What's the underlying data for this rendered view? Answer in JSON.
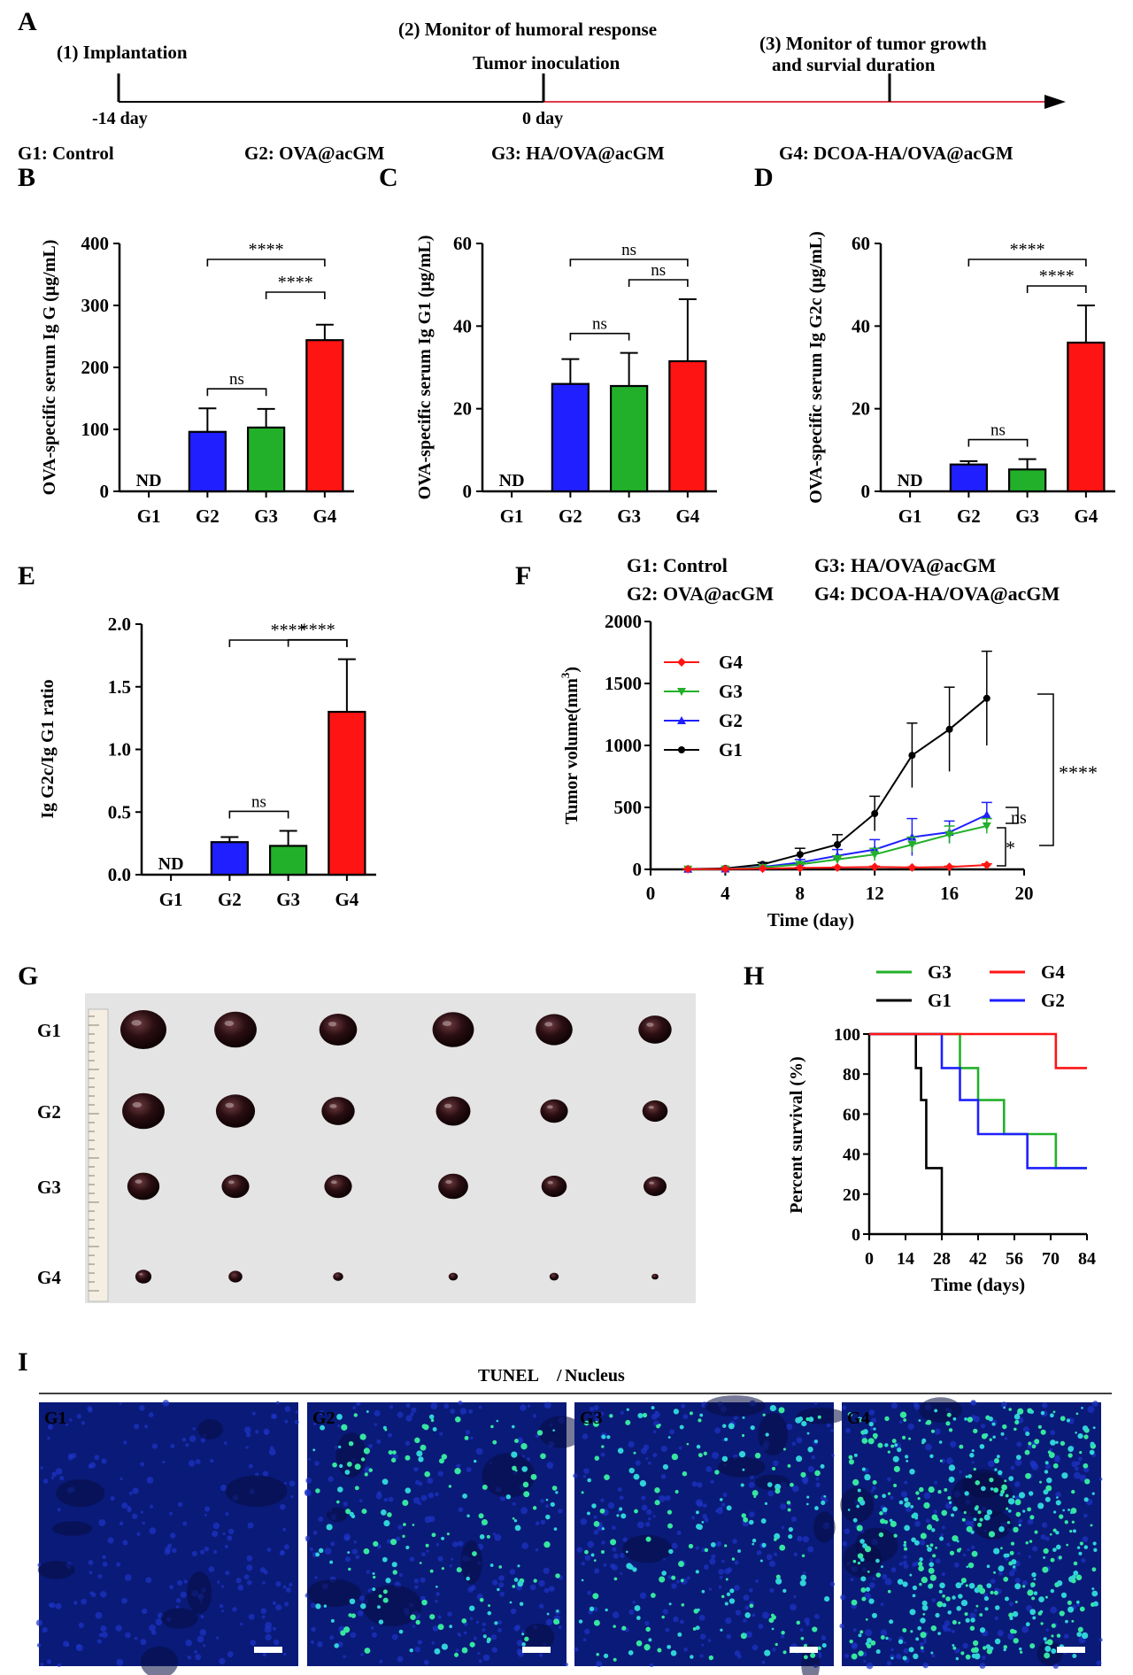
{
  "panel_letters": {
    "A": "A",
    "B": "B",
    "C": "C",
    "D": "D",
    "E": "E",
    "F": "F",
    "G": "G",
    "H": "H",
    "I": "I"
  },
  "timeline": {
    "step1": "(1) Implantation",
    "step2": "(2) Monitor of humoral response",
    "step2b": "Tumor inoculation",
    "step3a": "(3) Monitor of tumor growth",
    "step3b": "and survial duration",
    "day_neg14": "-14 day",
    "day_0": "0 day"
  },
  "groups_legend": {
    "g1": "G1: Control",
    "g2": "G2: OVA@acGM",
    "g3": "G3: HA/OVA@acGM",
    "g4": "G4: DCOA-HA/OVA@acGM"
  },
  "colors": {
    "G1": "#000000",
    "G2": "#1f1fff",
    "G3": "#22b02a",
    "G4": "#ff1414",
    "timeline_red": "#e0394a"
  },
  "chart_data": [
    {
      "id": "B",
      "type": "bar",
      "ylabel": "OVA-specific serum Ig G (μg/mL)",
      "categories": [
        "G1",
        "G2",
        "G3",
        "G4"
      ],
      "values": [
        0,
        96,
        103,
        244
      ],
      "errors": [
        0,
        38,
        30,
        25
      ],
      "ylim": [
        0,
        400
      ],
      "yticks": [
        "0",
        "100",
        "200",
        "300",
        "400"
      ],
      "nd_label": "ND",
      "sig": [
        {
          "from": "G2",
          "to": "G4",
          "label": "****"
        },
        {
          "from": "G3",
          "to": "G4",
          "label": "****"
        },
        {
          "from": "G2",
          "to": "G3",
          "label": "ns"
        }
      ]
    },
    {
      "id": "C",
      "type": "bar",
      "ylabel": "OVA-specific serum Ig G1 (μg/mL)",
      "categories": [
        "G1",
        "G2",
        "G3",
        "G4"
      ],
      "values": [
        0,
        26,
        25.5,
        31.5
      ],
      "errors": [
        0,
        6,
        8,
        15
      ],
      "ylim": [
        0,
        60
      ],
      "yticks": [
        "0",
        "20",
        "40",
        "60"
      ],
      "nd_label": "ND",
      "sig": [
        {
          "from": "G2",
          "to": "G4",
          "label": "ns"
        },
        {
          "from": "G3",
          "to": "G4",
          "label": "ns"
        },
        {
          "from": "G2",
          "to": "G3",
          "label": "ns"
        }
      ]
    },
    {
      "id": "D",
      "type": "bar",
      "ylabel": "OVA-specific serum Ig G2c (μg/mL)",
      "categories": [
        "G1",
        "G2",
        "G3",
        "G4"
      ],
      "values": [
        0,
        6.5,
        5.3,
        36
      ],
      "errors": [
        0,
        0.8,
        2.5,
        9
      ],
      "ylim": [
        0,
        60
      ],
      "yticks": [
        "0",
        "20",
        "40",
        "60"
      ],
      "nd_label": "ND",
      "sig": [
        {
          "from": "G2",
          "to": "G4",
          "label": "****"
        },
        {
          "from": "G3",
          "to": "G4",
          "label": "****"
        },
        {
          "from": "G2",
          "to": "G3",
          "label": "ns"
        }
      ]
    },
    {
      "id": "E",
      "type": "bar",
      "ylabel": "Ig G2c/Ig G1 ratio",
      "categories": [
        "G1",
        "G2",
        "G3",
        "G4"
      ],
      "values": [
        0,
        0.26,
        0.23,
        1.3
      ],
      "errors": [
        0,
        0.04,
        0.12,
        0.42
      ],
      "ylim": [
        0,
        2.0
      ],
      "yticks": [
        "0.0",
        "0.5",
        "1.0",
        "1.5",
        "2.0"
      ],
      "nd_label": "ND",
      "sig": [
        {
          "from": "G2",
          "to": "G4",
          "label": "****"
        },
        {
          "from": "G3",
          "to": "G4",
          "label": "****"
        },
        {
          "from": "G2",
          "to": "G3",
          "label": "ns"
        }
      ]
    },
    {
      "id": "F",
      "type": "line",
      "xlabel": "Time (day)",
      "ylabel_main": "Tumor volume(mm",
      "ylabel_sup": "3",
      "ylabel_end": ")",
      "xlim": [
        0,
        20
      ],
      "ylim": [
        0,
        2000
      ],
      "xticks": [
        "0",
        "4",
        "8",
        "12",
        "16",
        "20"
      ],
      "yticks": [
        "0",
        "500",
        "1000",
        "1500",
        "2000"
      ],
      "x": [
        2,
        4,
        6,
        8,
        10,
        12,
        14,
        16,
        18
      ],
      "series": [
        {
          "name": "G4",
          "values": [
            2,
            3,
            6,
            12,
            15,
            20,
            15,
            20,
            35
          ],
          "errors": [
            1,
            1,
            2,
            4,
            5,
            6,
            5,
            6,
            10
          ],
          "marker": "diamond"
        },
        {
          "name": "G3",
          "values": [
            2,
            3,
            15,
            40,
            80,
            120,
            200,
            280,
            350
          ],
          "errors": [
            1,
            2,
            6,
            15,
            30,
            50,
            60,
            70,
            60
          ],
          "marker": "tri-down"
        },
        {
          "name": "G2",
          "values": [
            2,
            4,
            20,
            55,
            110,
            160,
            260,
            300,
            440
          ],
          "errors": [
            1,
            2,
            8,
            25,
            50,
            80,
            150,
            90,
            100
          ],
          "marker": "tri-up"
        },
        {
          "name": "G1",
          "values": [
            4,
            8,
            40,
            120,
            200,
            450,
            920,
            1130,
            1380
          ],
          "errors": [
            2,
            4,
            15,
            50,
            80,
            140,
            260,
            340,
            380
          ],
          "marker": "circle"
        }
      ],
      "sig": [
        {
          "label": "****"
        },
        {
          "label": "ns"
        },
        {
          "label": "*"
        }
      ]
    },
    {
      "id": "H",
      "type": "line",
      "xlabel": "Time (days)",
      "ylabel": "Percent survival (%)",
      "xlim": [
        0,
        84
      ],
      "ylim": [
        0,
        100
      ],
      "xticks": [
        "0",
        "14",
        "28",
        "42",
        "56",
        "70",
        "84"
      ],
      "yticks": [
        "0",
        "20",
        "40",
        "60",
        "80",
        "100"
      ],
      "series": [
        {
          "name": "G3",
          "steps": [
            [
              0,
              100
            ],
            [
              35,
              100
            ],
            [
              35,
              83
            ],
            [
              42,
              83
            ],
            [
              42,
              67
            ],
            [
              52,
              67
            ],
            [
              52,
              50
            ],
            [
              72,
              50
            ],
            [
              72,
              33
            ],
            [
              84,
              33
            ]
          ]
        },
        {
          "name": "G4",
          "steps": [
            [
              0,
              100
            ],
            [
              72,
              100
            ],
            [
              72,
              83
            ],
            [
              84,
              83
            ]
          ]
        },
        {
          "name": "G1",
          "steps": [
            [
              0,
              100
            ],
            [
              18,
              100
            ],
            [
              18,
              83
            ],
            [
              20,
              83
            ],
            [
              20,
              67
            ],
            [
              22,
              67
            ],
            [
              22,
              33
            ],
            [
              28,
              33
            ],
            [
              28,
              0
            ]
          ]
        },
        {
          "name": "G2",
          "steps": [
            [
              0,
              100
            ],
            [
              28,
              100
            ],
            [
              28,
              83
            ],
            [
              35,
              83
            ],
            [
              35,
              67
            ],
            [
              42,
              67
            ],
            [
              42,
              50
            ],
            [
              61,
              50
            ],
            [
              61,
              33
            ],
            [
              84,
              33
            ]
          ]
        }
      ]
    }
  ],
  "photo": {
    "row_labels": [
      "G1",
      "G2",
      "G3",
      "G4"
    ],
    "tumor_size_rank": [
      [
        1.0,
        0.92,
        0.82,
        0.9,
        0.8,
        0.72
      ],
      [
        0.92,
        0.85,
        0.72,
        0.75,
        0.6,
        0.55
      ],
      [
        0.7,
        0.6,
        0.6,
        0.65,
        0.55,
        0.5
      ],
      [
        0.35,
        0.3,
        0.22,
        0.2,
        0.2,
        0.15
      ]
    ]
  },
  "tunel": {
    "title_a": "TUNEL",
    "sep": "/",
    "title_b": "Nucleus",
    "panels": [
      "G1",
      "G2",
      "G3",
      "G4"
    ],
    "apoptotic_density": [
      0.0,
      0.35,
      0.4,
      0.9
    ]
  }
}
